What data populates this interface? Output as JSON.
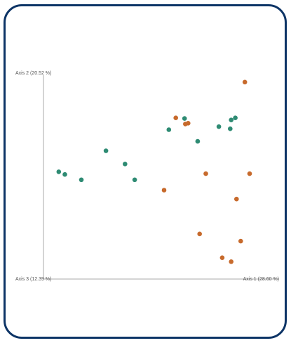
{
  "colors": {
    "frame": "#0d3466",
    "axis": "#aaaaaa",
    "group_a": "#2e8b73",
    "group_b": "#c76a2c"
  },
  "chart_data": {
    "type": "scatter",
    "title": "",
    "axis_labels": {
      "axis1": "Axis 1 (28.60 %)",
      "axis2": "Axis 2 (20.52 %)",
      "axis3": "Axis 3 (12.39 %)"
    },
    "xlim": [
      0,
      100
    ],
    "ylim": [
      0,
      100
    ],
    "grid": false,
    "legend": "none",
    "series": [
      {
        "color": "#2e8b73",
        "points": [
          {
            "x": 3.8,
            "y": 51.5
          },
          {
            "x": 6.9,
            "y": 50.1
          },
          {
            "x": 15.2,
            "y": 47.3
          },
          {
            "x": 27.6,
            "y": 62.5
          },
          {
            "x": 37.2,
            "y": 55.6
          },
          {
            "x": 42.1,
            "y": 47.3
          },
          {
            "x": 59.3,
            "y": 73.6
          },
          {
            "x": 67.2,
            "y": 79.5
          },
          {
            "x": 73.8,
            "y": 67.5
          },
          {
            "x": 84.5,
            "y": 75.2
          },
          {
            "x": 90.2,
            "y": 74.1
          },
          {
            "x": 90.7,
            "y": 78.7
          },
          {
            "x": 92.8,
            "y": 79.8
          }
        ]
      },
      {
        "color": "#c76a2c",
        "points": [
          {
            "x": 56.9,
            "y": 41.9
          },
          {
            "x": 62.8,
            "y": 79.8
          },
          {
            "x": 67.6,
            "y": 76.6
          },
          {
            "x": 69.0,
            "y": 77.0
          },
          {
            "x": 74.8,
            "y": 18.9
          },
          {
            "x": 77.9,
            "y": 50.5
          },
          {
            "x": 86.2,
            "y": 6.4
          },
          {
            "x": 90.7,
            "y": 4.3
          },
          {
            "x": 93.4,
            "y": 37.2
          },
          {
            "x": 95.5,
            "y": 15.1
          },
          {
            "x": 97.6,
            "y": 98.6
          },
          {
            "x": 100.0,
            "y": 50.5
          }
        ]
      }
    ]
  }
}
